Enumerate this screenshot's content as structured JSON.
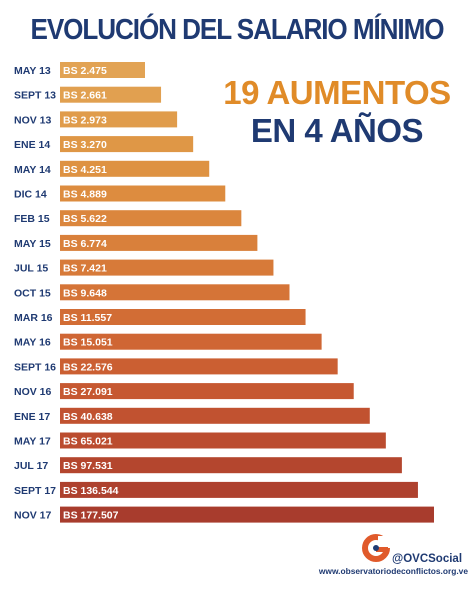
{
  "title": "EVOLUCIÓN DEL SALARIO MÍNIMO",
  "headline": {
    "line1": "19 AUMENTOS",
    "line2": "EN 4 AÑOS"
  },
  "chart_data": {
    "type": "bar",
    "orientation": "horizontal",
    "categories": [
      "MAY 13",
      "SEPT 13",
      "NOV 13",
      "ENE 14",
      "MAY 14",
      "DIC 14",
      "FEB 15",
      "MAY 15",
      "JUL 15",
      "OCT 15",
      "MAR 16",
      "MAY 16",
      "SEPT 16",
      "NOV 16",
      "ENE 17",
      "MAY 17",
      "JUL 17",
      "SEPT 17",
      "NOV 17"
    ],
    "value_labels": [
      "BS 2.475",
      "BS 2.661",
      "BS 2.973",
      "BS 3.270",
      "BS 4.251",
      "BS 4.889",
      "BS 5.622",
      "BS 6.774",
      "BS 7.421",
      "BS 9.648",
      "BS 11.557",
      "BS 15.051",
      "BS 22.576",
      "BS 27.091",
      "BS 40.638",
      "BS 65.021",
      "BS 97.531",
      "BS 136.544",
      "BS 177.507"
    ],
    "values": [
      2475,
      2661,
      2973,
      3270,
      4251,
      4889,
      5622,
      6774,
      7421,
      9648,
      11557,
      15051,
      22576,
      27091,
      40638,
      65021,
      97531,
      136544,
      177507
    ],
    "bar_colors": [
      "#e2a354",
      "#e1a050",
      "#e09c4b",
      "#df9746",
      "#de9242",
      "#dd8c3f",
      "#db863d",
      "#d9803b",
      "#d77a39",
      "#d57437",
      "#d26d35",
      "#cf6634",
      "#cb5f32",
      "#c65831",
      "#c15230",
      "#bb4c2f",
      "#b4462e",
      "#ae412e",
      "#a83c2d"
    ],
    "bar_scale": "stepped, not to scale",
    "xlabel": "",
    "ylabel": ""
  },
  "brand": {
    "handle": "@OVCSocial",
    "website": "www.observatoriodeconflictos.org.ve",
    "logo_icon": "ovc-logo-icon",
    "accent": "#e05a2b"
  },
  "colors": {
    "navy": "#1f3a72",
    "orange": "#e08b28"
  }
}
